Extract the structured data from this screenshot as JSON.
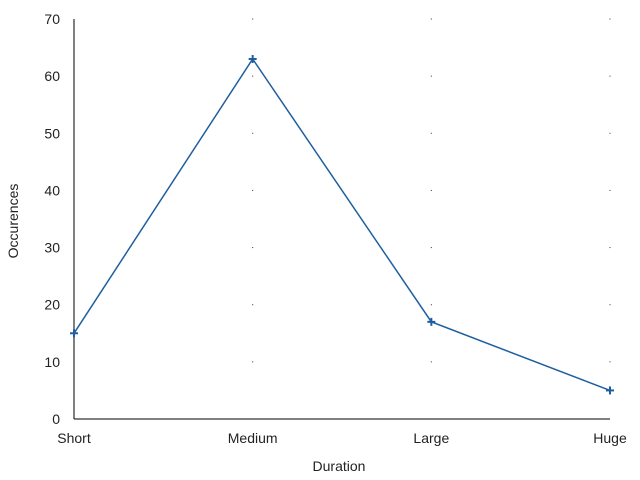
{
  "chart_data": {
    "type": "line",
    "categories": [
      "Short",
      "Medium",
      "Large",
      "Huge"
    ],
    "series": [
      {
        "values": [
          15,
          63,
          17,
          5
        ],
        "color": "#1f5f9f",
        "marker": "plus"
      }
    ],
    "xlabel": "Duration",
    "ylabel": "Occurences",
    "ylim": [
      0,
      70
    ],
    "yticks": [
      0,
      10,
      20,
      30,
      40,
      50,
      60,
      70
    ],
    "grid": "dotted-points"
  }
}
